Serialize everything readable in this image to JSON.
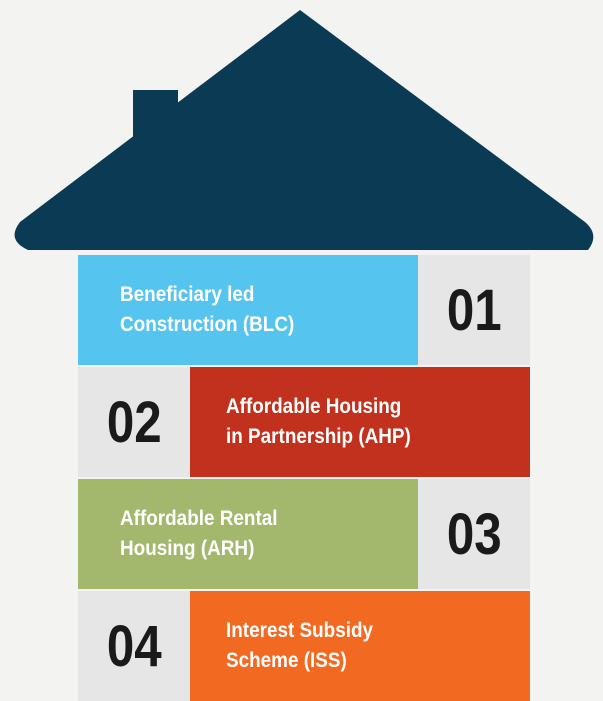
{
  "items": [
    {
      "number": "01",
      "lines": [
        "Beneficiary led",
        "Construction (BLC)"
      ],
      "color": "#55c4ef",
      "side": "left"
    },
    {
      "number": "02",
      "lines": [
        "Affordable Housing",
        "in Partnership (AHP)"
      ],
      "color": "#c1311d",
      "side": "right"
    },
    {
      "number": "03",
      "lines": [
        "Affordable Rental",
        "Housing (ARH)"
      ],
      "color": "#a3b86c",
      "side": "left"
    },
    {
      "number": "04",
      "lines": [
        "Interest Subsidy",
        "Scheme (ISS)"
      ],
      "color": "#f26a22",
      "side": "right"
    }
  ]
}
